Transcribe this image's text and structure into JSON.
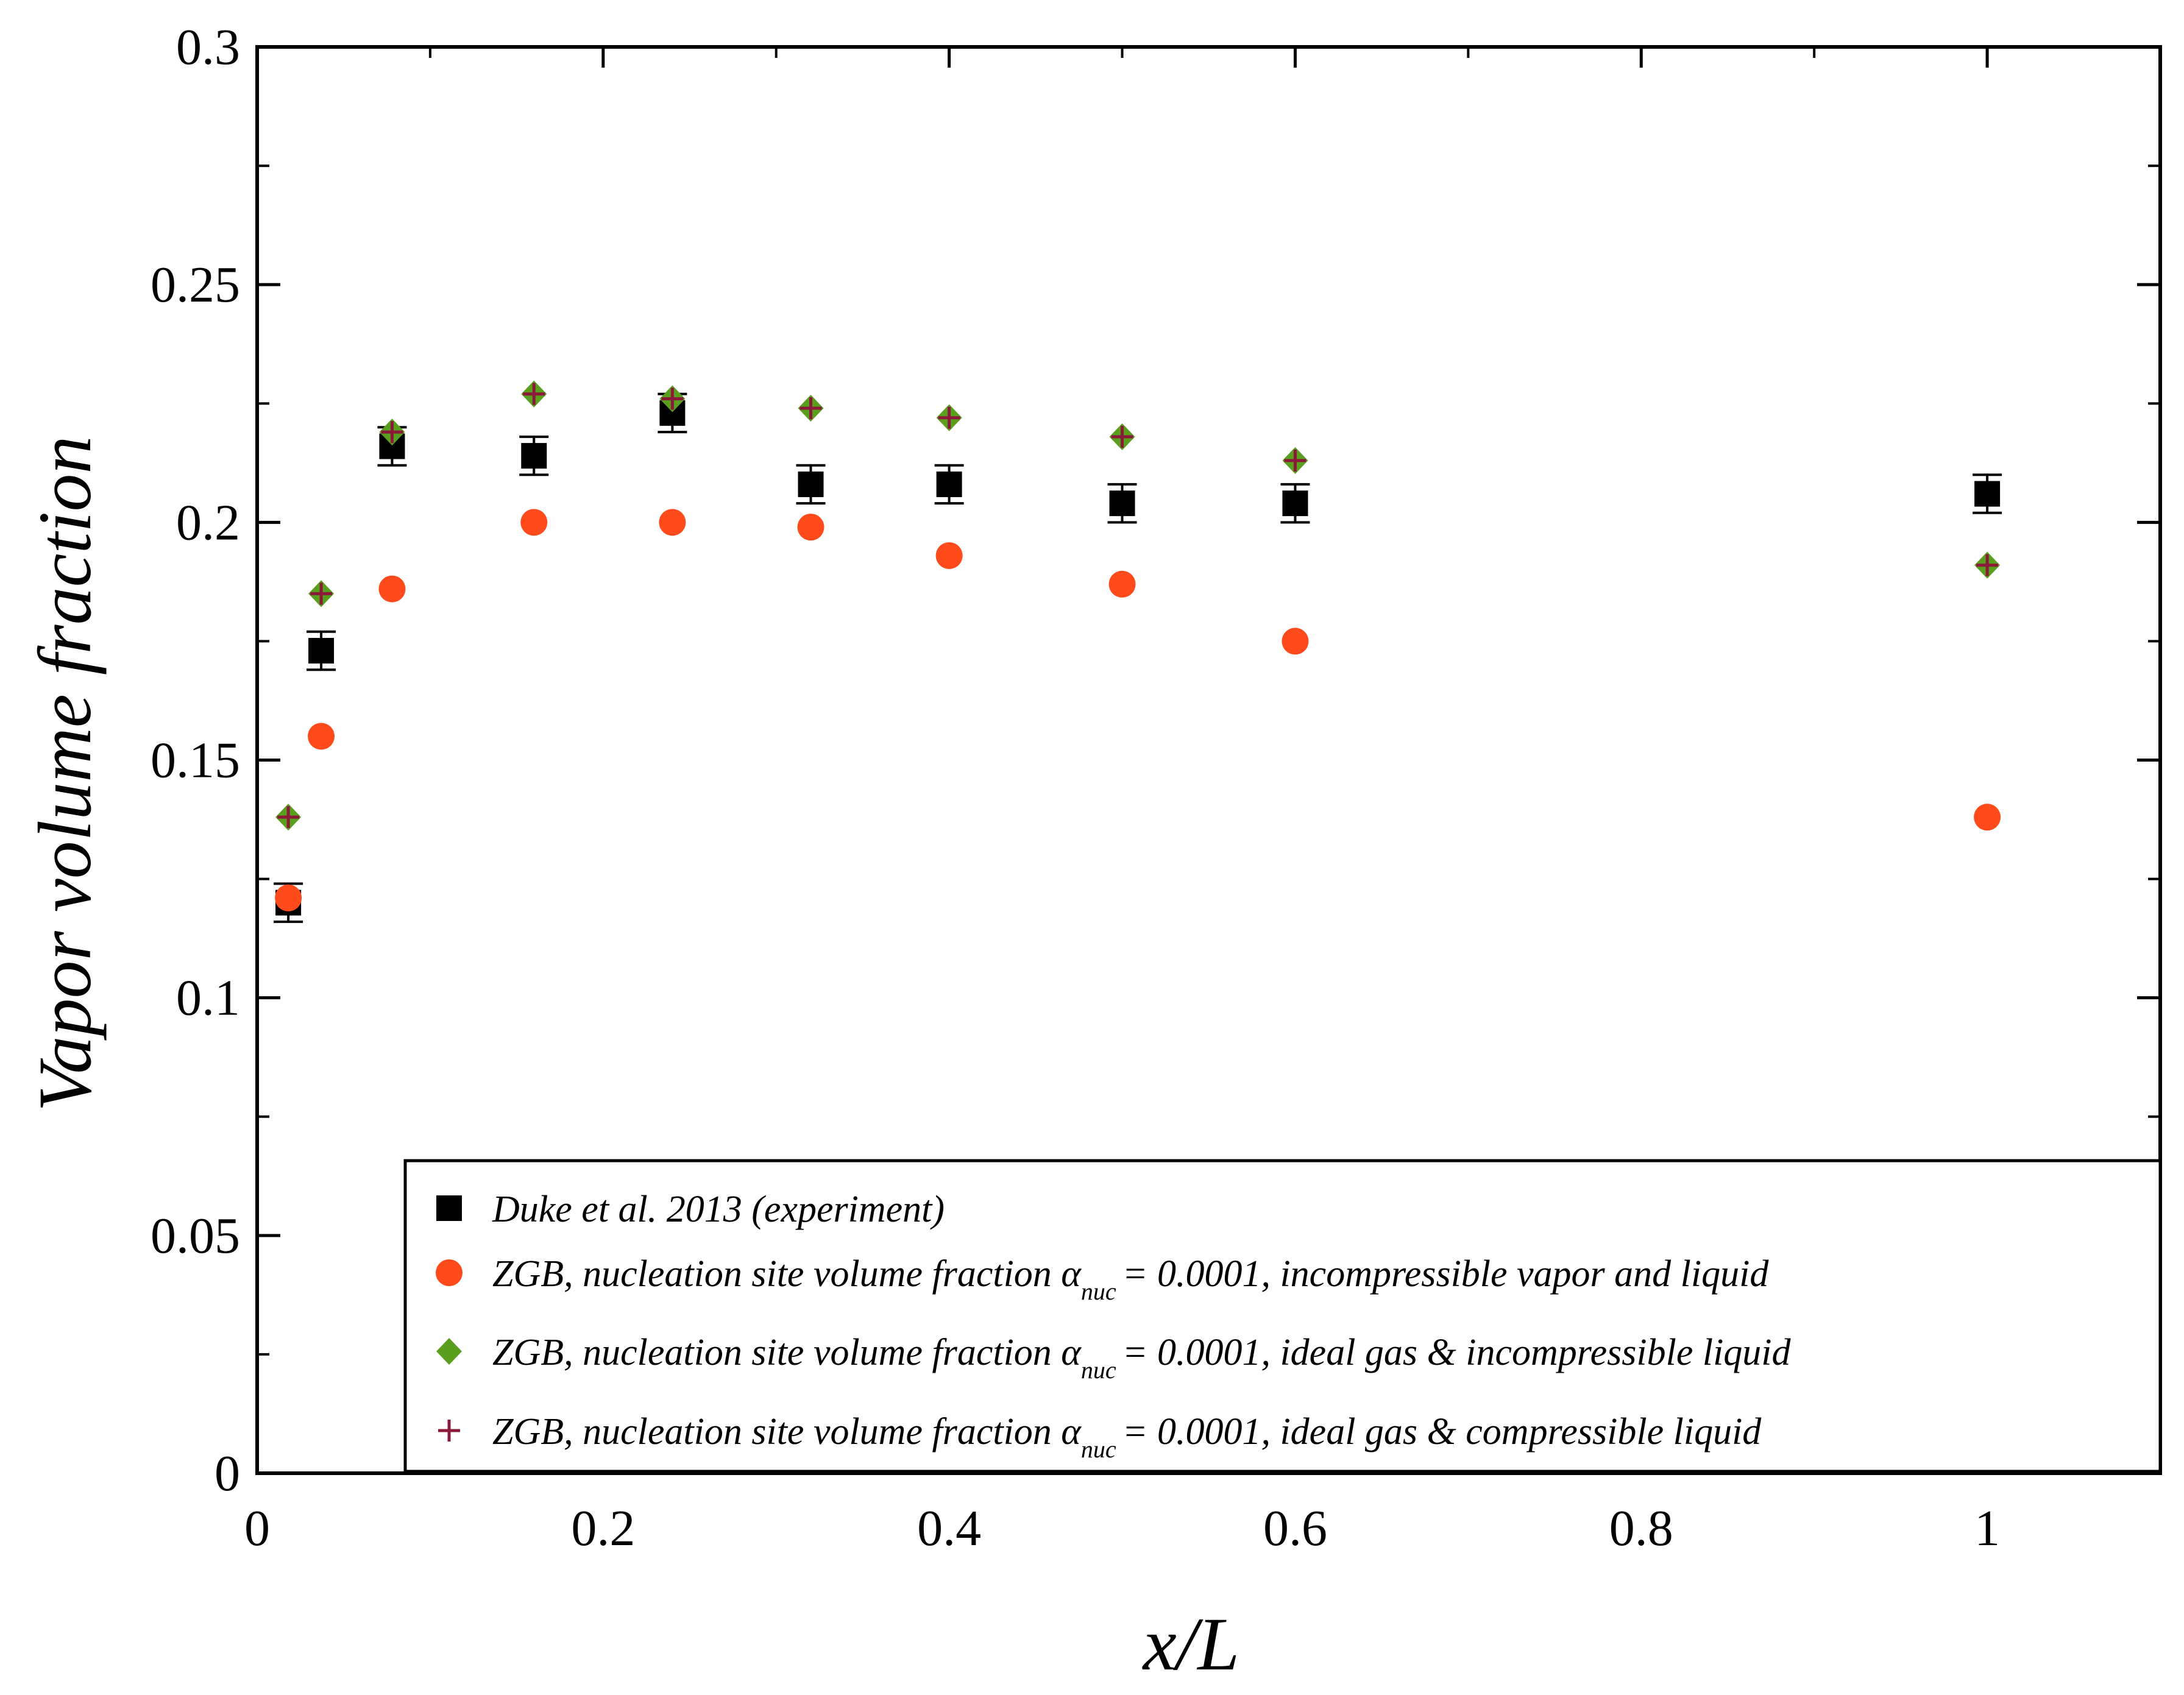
{
  "chart_data": {
    "type": "scatter",
    "xlabel": "x/L",
    "ylabel": "Vapor volume fraction",
    "xlim": [
      0,
      1.1
    ],
    "ylim": [
      0,
      0.3
    ],
    "x_ticks": [
      0,
      0.2,
      0.4,
      0.6,
      0.8,
      1
    ],
    "x_tick_labels": [
      "0",
      "0.2",
      "0.4",
      "0.6",
      "0.8",
      "1"
    ],
    "y_ticks": [
      0,
      0.05,
      0.1,
      0.15,
      0.2,
      0.25,
      0.3
    ],
    "y_tick_labels": [
      "0",
      "0.05",
      "0.1",
      "0.15",
      "0.2",
      "0.25",
      "0.3"
    ],
    "grid": false,
    "legend_position": "bottom-right",
    "series": [
      {
        "name": "Duke et al. 2013 (experiment)",
        "marker": "square",
        "color": "#000000",
        "error": 0.004,
        "x": [
          0.018,
          0.037,
          0.078,
          0.16,
          0.24,
          0.32,
          0.4,
          0.5,
          0.6,
          1.0
        ],
        "y": [
          0.12,
          0.173,
          0.216,
          0.214,
          0.223,
          0.208,
          0.208,
          0.204,
          0.204,
          0.206
        ]
      },
      {
        "name_prefix": "ZGB, nucleation site volume fraction α",
        "name_sub": "nuc",
        "name_suffix": "= 0.0001, incompressible vapor and liquid",
        "marker": "circle",
        "color": "#ff4a1c",
        "x": [
          0.018,
          0.037,
          0.078,
          0.16,
          0.24,
          0.32,
          0.4,
          0.5,
          0.6,
          1.0
        ],
        "y": [
          0.121,
          0.155,
          0.186,
          0.2,
          0.2,
          0.199,
          0.193,
          0.187,
          0.175,
          0.138
        ]
      },
      {
        "name_prefix": "ZGB, nucleation site volume fraction α",
        "name_sub": "nuc",
        "name_suffix": "= 0.0001, ideal gas & incompressible liquid",
        "marker": "diamond",
        "color": "#5a9e1e",
        "x": [
          0.018,
          0.037,
          0.078,
          0.16,
          0.24,
          0.32,
          0.4,
          0.5,
          0.6,
          1.0
        ],
        "y": [
          0.138,
          0.185,
          0.219,
          0.227,
          0.226,
          0.224,
          0.222,
          0.218,
          0.213,
          0.191
        ]
      },
      {
        "name_prefix": "ZGB, nucleation site volume fraction α",
        "name_sub": "nuc",
        "name_suffix": "= 0.0001, ideal gas & compressible liquid",
        "marker": "plus",
        "color": "#8b1a3a",
        "x": [
          0.018,
          0.037,
          0.078,
          0.16,
          0.24,
          0.32,
          0.4,
          0.5,
          0.6,
          1.0
        ],
        "y": [
          0.138,
          0.185,
          0.219,
          0.227,
          0.226,
          0.224,
          0.222,
          0.218,
          0.213,
          0.191
        ]
      }
    ]
  }
}
